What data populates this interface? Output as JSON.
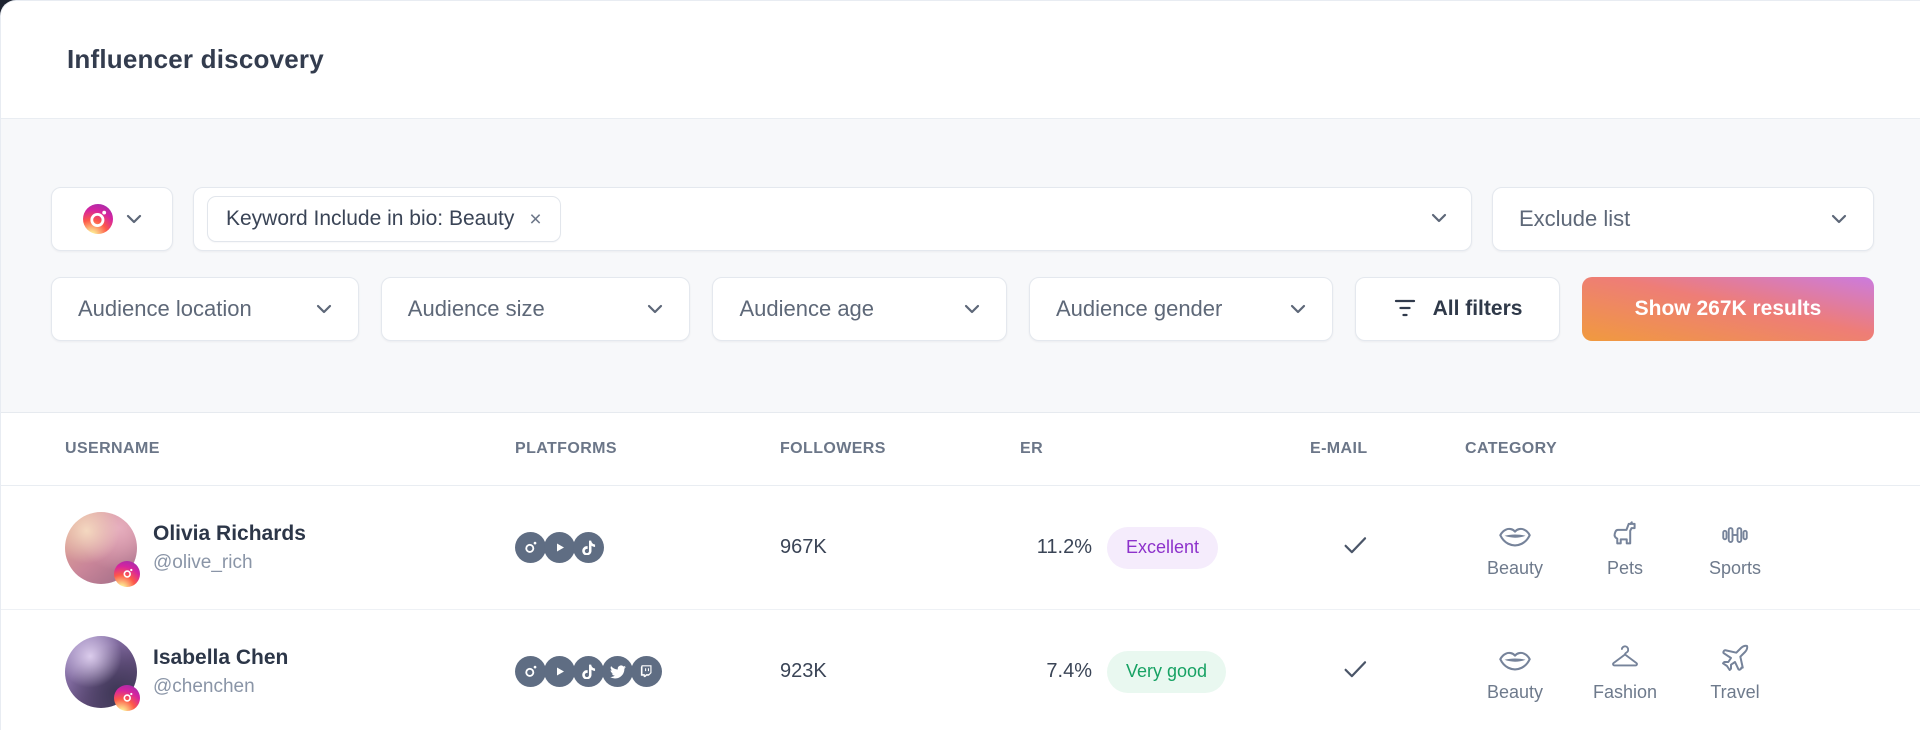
{
  "page": {
    "title": "Influencer discovery"
  },
  "filters": {
    "platform_select": {
      "selected_platform": "instagram"
    },
    "keyword_chip": {
      "label": "Keyword Include in bio: Beauty",
      "remove_symbol": "×"
    },
    "exclude_label": "Exclude list",
    "audience_dropdowns": [
      {
        "label": "Audience location"
      },
      {
        "label": "Audience size"
      },
      {
        "label": "Audience age"
      },
      {
        "label": "Audience gender"
      }
    ],
    "all_filters_label": "All filters",
    "show_results_label": "Show 267K results",
    "results_count": "267K"
  },
  "table": {
    "columns": [
      "USERNAME",
      "PLATFORMS",
      "FOLLOWERS",
      "ER",
      "E-MAIL",
      "CATEGORY"
    ],
    "rows": [
      {
        "name": "Olivia Richards",
        "handle": "@olive_rich",
        "avatar_badge": "instagram-icon",
        "platforms": [
          "instagram",
          "youtube",
          "tiktok"
        ],
        "followers": "967K",
        "er": "11.2%",
        "er_badge": "Excellent",
        "er_badge_type": "excellent",
        "has_email": true,
        "categories": [
          {
            "icon": "lips-icon",
            "label": "Beauty"
          },
          {
            "icon": "dog-icon",
            "label": "Pets"
          },
          {
            "icon": "dumbbell-icon",
            "label": "Sports"
          }
        ]
      },
      {
        "name": "Isabella Chen",
        "handle": "@chenchen",
        "avatar_badge": "instagram-icon",
        "platforms": [
          "instagram",
          "youtube",
          "tiktok",
          "twitter",
          "twitch"
        ],
        "followers": "923K",
        "er": "7.4%",
        "er_badge": "Very good",
        "er_badge_type": "very_good",
        "has_email": true,
        "categories": [
          {
            "icon": "lips-icon",
            "label": "Beauty"
          },
          {
            "icon": "hanger-icon",
            "label": "Fashion"
          },
          {
            "icon": "plane-icon",
            "label": "Travel"
          }
        ]
      }
    ]
  },
  "colors": {
    "results_button_gradient": [
      "#f09a3e",
      "#ee7d77",
      "#cb7bdf"
    ],
    "badge_excellent_bg": "#f5ecfc",
    "badge_excellent_text": "#8d32cb",
    "badge_very_good_bg": "#e9f8f0",
    "badge_very_good_text": "#17a264",
    "platform_icon_bg": "#5f6d83",
    "filters_band_bg": "#f7f8fa"
  }
}
